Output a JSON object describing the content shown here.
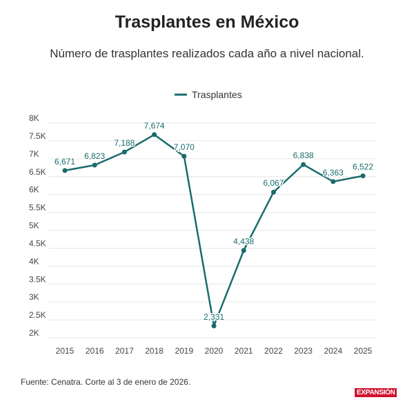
{
  "title": "Trasplantes en México",
  "subtitle": "Número de trasplantes realizados cada año a nivel nacional.",
  "source": "Fuente: Cenatra. Corte al 3 de enero de 2026.",
  "logo": "EXPANSIÓN",
  "colors": {
    "line": "#1a6b6b",
    "grid": "#e6e6e6",
    "label": "#1a6b6b"
  },
  "chart_data": {
    "type": "line",
    "title": "Trasplantes en México",
    "legend": {
      "position": "top",
      "entries": [
        "Trasplantes"
      ]
    },
    "x": [
      "2015",
      "2016",
      "2017",
      "2018",
      "2019",
      "2020",
      "2021",
      "2022",
      "2023",
      "2024",
      "2025"
    ],
    "series": [
      {
        "name": "Trasplantes",
        "values": [
          6671,
          6823,
          7188,
          7674,
          7070,
          2331,
          4438,
          6067,
          6838,
          6363,
          6522
        ],
        "labels": [
          "6,671",
          "6,823",
          "7,188",
          "7,674",
          "7,070",
          "2,331",
          "4,438",
          "6,067",
          "6,838",
          "6,363",
          "6,522"
        ]
      }
    ],
    "ylim": [
      2000,
      8000
    ],
    "yticks": [
      2000,
      2500,
      3000,
      3500,
      4000,
      4500,
      5000,
      5500,
      6000,
      6500,
      7000,
      7500,
      8000
    ],
    "ytick_labels": [
      "2K",
      "2.5K",
      "3K",
      "3.5K",
      "4K",
      "4.5K",
      "5K",
      "5.5K",
      "6K",
      "6.5K",
      "7K",
      "7.5K",
      "8K"
    ],
    "grid": true
  }
}
